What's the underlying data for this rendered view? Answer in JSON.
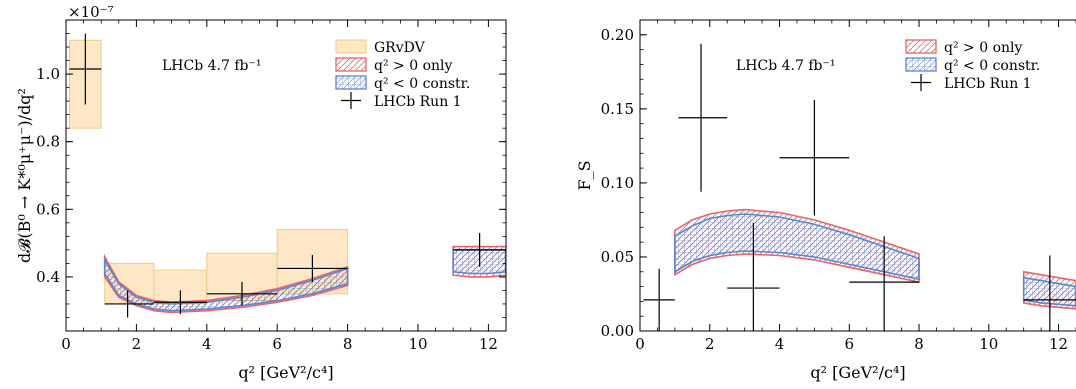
{
  "chart_data": [
    {
      "type": "area",
      "panel": "left",
      "exponent_label": "×10⁻⁷",
      "annotation": "LHCb 4.7 fb⁻¹",
      "xlabel": "q² [GeV²/c⁴]",
      "ylabel": "d𝓑(B⁰ → K*⁰μ⁺μ⁻)/dq²",
      "xlim": [
        0,
        12.5
      ],
      "ylim": [
        0.24,
        1.16
      ],
      "xticks": [
        0,
        2,
        4,
        6,
        8,
        10,
        12
      ],
      "yticks": [
        0.4,
        0.6,
        0.8,
        1.0
      ],
      "ytick_labels": [
        "0.4",
        "0.6",
        "0.8",
        "1.0"
      ],
      "legend": {
        "location": "top-right",
        "entries": [
          "GRvDV",
          "q² > 0 only",
          "q² < 0 constr.",
          "LHCb Run 1"
        ]
      },
      "grvdv_boxes": [
        {
          "x": [
            0.1,
            1.0
          ],
          "y": [
            0.84,
            1.1
          ]
        },
        {
          "x": [
            1.1,
            2.5
          ],
          "y": [
            0.32,
            0.44
          ]
        },
        {
          "x": [
            2.5,
            4.0
          ],
          "y": [
            0.32,
            0.42
          ]
        },
        {
          "x": [
            4.0,
            6.0
          ],
          "y": [
            0.33,
            0.47
          ]
        },
        {
          "x": [
            6.0,
            8.0
          ],
          "y": [
            0.35,
            0.54
          ]
        }
      ],
      "band_pos": [
        {
          "x": [
            1.1,
            1.5,
            2.0,
            2.5,
            3.0,
            4.0,
            5.0,
            6.0,
            7.0,
            8.0
          ],
          "low": [
            0.4,
            0.34,
            0.315,
            0.3,
            0.295,
            0.3,
            0.31,
            0.325,
            0.345,
            0.375
          ],
          "high": [
            0.46,
            0.385,
            0.345,
            0.33,
            0.325,
            0.33,
            0.345,
            0.365,
            0.395,
            0.43
          ]
        },
        {
          "x": [
            11.0,
            11.5,
            12.0,
            12.5
          ],
          "low": [
            0.405,
            0.4,
            0.4,
            0.405
          ],
          "high": [
            0.49,
            0.49,
            0.49,
            0.49
          ]
        }
      ],
      "band_neg": [
        {
          "x": [
            1.1,
            1.5,
            2.0,
            2.5,
            3.0,
            4.0,
            5.0,
            6.0,
            7.0,
            8.0
          ],
          "low": [
            0.41,
            0.345,
            0.32,
            0.305,
            0.3,
            0.305,
            0.315,
            0.33,
            0.35,
            0.38
          ],
          "high": [
            0.45,
            0.38,
            0.34,
            0.325,
            0.32,
            0.325,
            0.34,
            0.36,
            0.39,
            0.425
          ]
        },
        {
          "x": [
            11.0,
            11.5,
            12.0,
            12.5
          ],
          "low": [
            0.415,
            0.41,
            0.41,
            0.415
          ],
          "high": [
            0.48,
            0.48,
            0.48,
            0.48
          ]
        }
      ],
      "points": [
        {
          "x": 0.55,
          "xerr": [
            0.45,
            0.45
          ],
          "y": 1.015,
          "yerr": [
            0.105,
            0.105
          ]
        },
        {
          "x": 1.75,
          "xerr": [
            0.65,
            0.75
          ],
          "y": 0.32,
          "yerr": [
            0.04,
            0.04
          ]
        },
        {
          "x": 3.25,
          "xerr": [
            0.75,
            0.75
          ],
          "y": 0.325,
          "yerr": [
            0.035,
            0.035
          ]
        },
        {
          "x": 5.0,
          "xerr": [
            1.0,
            1.0
          ],
          "y": 0.35,
          "yerr": [
            0.035,
            0.035
          ]
        },
        {
          "x": 7.0,
          "xerr": [
            1.0,
            1.0
          ],
          "y": 0.425,
          "yerr": [
            0.04,
            0.04
          ]
        },
        {
          "x": 11.75,
          "xerr": [
            0.75,
            0.75
          ],
          "y": 0.48,
          "yerr": [
            0.05,
            0.05
          ]
        }
      ]
    },
    {
      "type": "area",
      "panel": "right",
      "annotation": "LHCb 4.7 fb⁻¹",
      "xlabel": "q² [GeV²/c⁴]",
      "ylabel": "F_S",
      "xlim": [
        0,
        12.5
      ],
      "ylim": [
        0,
        0.21
      ],
      "xticks": [
        0,
        2,
        4,
        6,
        8,
        10,
        12
      ],
      "yticks": [
        0,
        0.05,
        0.1,
        0.15,
        0.2
      ],
      "ytick_labels": [
        "0.00",
        "0.05",
        "0.10",
        "0.15",
        "0.20"
      ],
      "legend": {
        "location": "top-right",
        "entries": [
          "q² > 0 only",
          "q² < 0 constr.",
          "LHCb Run 1"
        ]
      },
      "band_pos": [
        {
          "x": [
            1.0,
            1.5,
            2.0,
            2.5,
            3.0,
            4.0,
            5.0,
            6.0,
            7.0,
            8.0
          ],
          "low": [
            0.038,
            0.045,
            0.049,
            0.051,
            0.052,
            0.051,
            0.048,
            0.043,
            0.038,
            0.033
          ],
          "high": [
            0.068,
            0.075,
            0.079,
            0.081,
            0.082,
            0.08,
            0.075,
            0.068,
            0.06,
            0.052
          ]
        },
        {
          "x": [
            11.0,
            11.5,
            12.0,
            12.5
          ],
          "low": [
            0.019,
            0.017,
            0.016,
            0.015
          ],
          "high": [
            0.04,
            0.038,
            0.036,
            0.034
          ]
        }
      ],
      "band_neg": [
        {
          "x": [
            1.0,
            1.5,
            2.0,
            2.5,
            3.0,
            4.0,
            5.0,
            6.0,
            7.0,
            8.0
          ],
          "low": [
            0.04,
            0.047,
            0.051,
            0.053,
            0.054,
            0.053,
            0.05,
            0.045,
            0.04,
            0.035
          ],
          "high": [
            0.064,
            0.071,
            0.076,
            0.078,
            0.079,
            0.077,
            0.072,
            0.065,
            0.057,
            0.049
          ]
        },
        {
          "x": [
            11.0,
            11.5,
            12.0,
            12.5
          ],
          "low": [
            0.021,
            0.019,
            0.018,
            0.017
          ],
          "high": [
            0.036,
            0.034,
            0.032,
            0.03
          ]
        }
      ],
      "points": [
        {
          "x": 0.55,
          "xerr": [
            0.45,
            0.45
          ],
          "y": 0.021,
          "yerr": [
            0.021,
            0.021
          ]
        },
        {
          "x": 1.75,
          "xerr": [
            0.65,
            0.75
          ],
          "y": 0.144,
          "yerr": [
            0.05,
            0.05
          ]
        },
        {
          "x": 3.25,
          "xerr": [
            0.75,
            0.75
          ],
          "y": 0.029,
          "yerr": [
            0.029,
            0.044
          ]
        },
        {
          "x": 5.0,
          "xerr": [
            1.0,
            1.0
          ],
          "y": 0.117,
          "yerr": [
            0.039,
            0.039
          ]
        },
        {
          "x": 7.0,
          "xerr": [
            1.0,
            1.0
          ],
          "y": 0.033,
          "yerr": [
            0.033,
            0.031
          ]
        },
        {
          "x": 11.75,
          "xerr": [
            0.75,
            0.75
          ],
          "y": 0.021,
          "yerr": [
            0.021,
            0.03
          ]
        }
      ]
    }
  ],
  "colors": {
    "grvdv_fill": "#fde7c4",
    "grvdv_edge": "#f3c98a",
    "pos_band": "#e8646a",
    "neg_band": "#5b84d6",
    "points": "#000000"
  }
}
